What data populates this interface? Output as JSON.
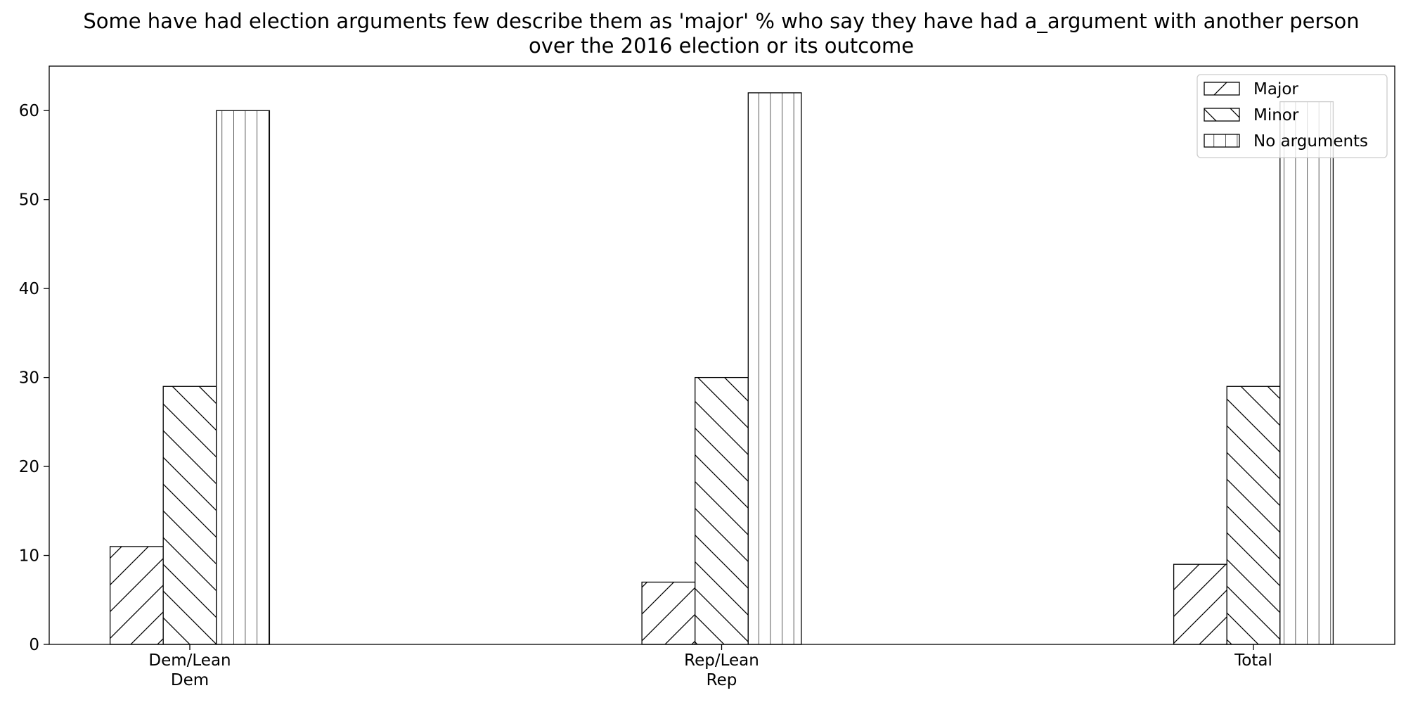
{
  "chart_data": {
    "type": "bar",
    "title": "Some have had election arguments few describe them as 'major' % who say they have had a_argument with another person over the 2016 election or its outcome",
    "title_lines": [
      "Some have had election arguments few describe them as 'major' % who say they have had a_argument with another person",
      "over the 2016 election or its outcome"
    ],
    "xlabel": "",
    "ylabel": "",
    "categories": [
      "Dem/Lean Dem",
      "Rep/Lean Rep",
      "Total"
    ],
    "category_label_lines": [
      [
        "Dem/Lean",
        "Dem"
      ],
      [
        "Rep/Lean",
        "Rep"
      ],
      [
        "Total"
      ]
    ],
    "series": [
      {
        "name": "Major",
        "values": [
          11,
          7,
          9
        ],
        "hatch": "diagonal-up"
      },
      {
        "name": "Minor",
        "values": [
          29,
          30,
          29
        ],
        "hatch": "diagonal-down"
      },
      {
        "name": "No arguments",
        "values": [
          60,
          62,
          61
        ],
        "hatch": "vertical"
      }
    ],
    "ylim": [
      0,
      65
    ],
    "yticks": [
      0,
      10,
      20,
      30,
      40,
      50,
      60
    ],
    "grid": false,
    "legend_position": "top-right",
    "colors": {
      "bar_fill": "#ffffff",
      "edge": "#000000",
      "hatch": "#000000"
    }
  }
}
